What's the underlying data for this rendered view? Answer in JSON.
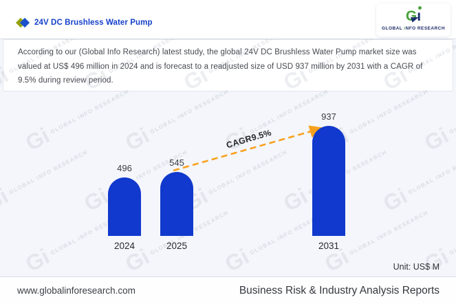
{
  "header": {
    "title": "24V DC Brushless Water Pump",
    "logo": {
      "g": "G",
      "i_body": "ı",
      "caption_pre": "GLOBAL ",
      "caption_i": "i",
      "caption_post": "NFO RESEARCH"
    }
  },
  "summary": "According to our (Global Info Research) latest study, the global 24V DC Brushless Water Pump market size was valued at US$ 496 million in 2024 and is forecast to a readjusted size of USD 937 million by 2031 with a CAGR of 9.5% during review period.",
  "chart_data": {
    "type": "bar",
    "title": "24V DC Brushless Water Pump",
    "categories": [
      "2024",
      "2025",
      "2031"
    ],
    "values": [
      496,
      545,
      937
    ],
    "unit_label": "Unit: US$ M",
    "annotation": "CAGR9.5%",
    "ylim": [
      0,
      937
    ],
    "grid": false,
    "legend": false,
    "bar_color": "#1139cd",
    "arrow_color": "#f9a01c"
  },
  "watermark": {
    "brand": "Gi",
    "text": "GLOBAL INFO RESEARCH"
  },
  "footer": {
    "website": "www.globalinforesearch.com",
    "tagline": "Business Risk & Industry Analysis Reports"
  }
}
